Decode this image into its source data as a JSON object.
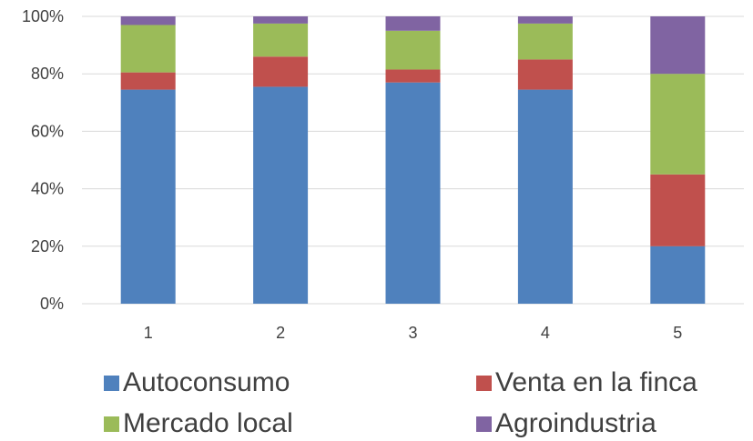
{
  "chart_data": {
    "type": "bar",
    "stacked": true,
    "percent": true,
    "categories": [
      "1",
      "2",
      "3",
      "4",
      "5"
    ],
    "series": [
      {
        "name": "Autoconsumo",
        "color": "#4f81bd",
        "values": [
          74.5,
          75.5,
          77,
          74.5,
          20
        ]
      },
      {
        "name": "Venta en la finca",
        "color": "#c0504d",
        "values": [
          6,
          10.5,
          4.5,
          10.5,
          25
        ]
      },
      {
        "name": "Mercado local",
        "color": "#9bbb59",
        "values": [
          16.5,
          11.5,
          13.5,
          12.5,
          35
        ]
      },
      {
        "name": "Agroindustria",
        "color": "#8064a2",
        "values": [
          3,
          2.5,
          5,
          2.5,
          20
        ]
      }
    ],
    "ylim": [
      0,
      100
    ],
    "yticks": [
      "0%",
      "20%",
      "40%",
      "60%",
      "80%",
      "100%"
    ],
    "grid": true,
    "legend_position": "bottom"
  }
}
